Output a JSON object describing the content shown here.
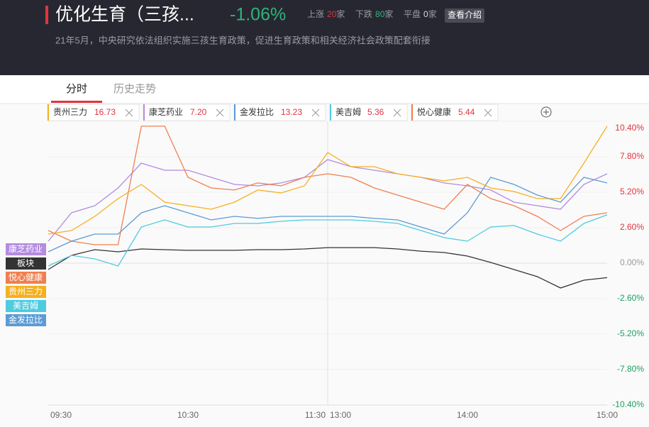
{
  "header": {
    "title": "优化生育（三孩...",
    "change": "-1.06%",
    "stats": [
      {
        "label": "上涨",
        "count": 20,
        "unit": "家"
      },
      {
        "label": "下跌",
        "count": 80,
        "unit": "家"
      },
      {
        "label": "平盘",
        "count": 0,
        "unit": "家"
      }
    ],
    "button": "查看介绍",
    "description": "21年5月，中央研究依法组织实施三孩生育政策，促进生育政策和相关经济社会政策配套衔接"
  },
  "tabs": [
    "分时",
    "历史走势"
  ],
  "stocks": [
    {
      "name": "贵州三力",
      "price": "16.73",
      "color": "#f5b021"
    },
    {
      "name": "康芝药业",
      "price": "7.20",
      "color": "#b38be0"
    },
    {
      "name": "金发拉比",
      "price": "13.23",
      "color": "#5b9bd5"
    },
    {
      "name": "美吉姆",
      "price": "5.36",
      "color": "#4fcbe0"
    },
    {
      "name": "悦心健康",
      "price": "5.44",
      "color": "#f07f4f"
    }
  ],
  "chart_data": {
    "type": "line",
    "x": [
      "09:30",
      "09:40",
      "09:50",
      "10:00",
      "10:10",
      "10:20",
      "10:30",
      "10:40",
      "10:50",
      "11:00",
      "11:10",
      "11:20",
      "11:30",
      "13:10",
      "13:20",
      "13:30",
      "13:40",
      "13:50",
      "14:00",
      "14:10",
      "14:20",
      "14:30",
      "14:40",
      "14:50",
      "15:00"
    ],
    "xticks": [
      "09:30",
      "10:30",
      "11:30",
      "13:00",
      "14:00",
      "15:00"
    ],
    "ylim": [
      -10.4,
      10.4
    ],
    "yticks": [
      {
        "value": 10.4,
        "label": "10.40%"
      },
      {
        "value": 7.8,
        "label": "7.80%"
      },
      {
        "value": 5.2,
        "label": "5.20%"
      },
      {
        "value": 2.6,
        "label": "2.60%"
      },
      {
        "value": 0,
        "label": "0.00%"
      },
      {
        "value": -2.6,
        "label": "-2.60%"
      },
      {
        "value": -5.2,
        "label": "-5.20%"
      },
      {
        "value": -7.8,
        "label": "-7.80%"
      },
      {
        "value": -10.4,
        "label": "-10.40%"
      }
    ],
    "series": [
      {
        "name": "康芝药业",
        "color": "#b38be0",
        "values": [
          1.61,
          3.69,
          4.21,
          5.51,
          7.33,
          6.81,
          6.81,
          6.29,
          5.77,
          5.67,
          5.88,
          6.29,
          7.59,
          7.07,
          6.81,
          6.55,
          6.29,
          5.88,
          5.67,
          5.36,
          4.47,
          4.21,
          3.95,
          5.77,
          6.55
        ]
      },
      {
        "name": "板块",
        "color": "#333333",
        "values": [
          -0.47,
          0.57,
          0.99,
          0.83,
          1.04,
          0.99,
          0.94,
          0.94,
          0.94,
          0.99,
          0.99,
          1.04,
          1.14,
          1.14,
          1.14,
          1.04,
          0.88,
          0.78,
          0.52,
          0.05,
          -0.47,
          -0.99,
          -1.82,
          -1.25,
          -1.06
        ]
      },
      {
        "name": "悦心健康",
        "color": "#f07f4f",
        "values": [
          2.39,
          1.61,
          1.35,
          1.35,
          10.04,
          10.04,
          6.29,
          5.51,
          5.36,
          5.88,
          5.67,
          6.29,
          6.55,
          6.29,
          5.51,
          4.99,
          4.47,
          3.95,
          5.77,
          4.73,
          4.21,
          3.43,
          2.39,
          3.43,
          3.69
        ]
      },
      {
        "name": "贵州三力",
        "color": "#f5b021",
        "values": [
          2.13,
          2.39,
          3.43,
          4.73,
          5.77,
          4.47,
          4.21,
          3.95,
          4.47,
          5.36,
          5.15,
          5.67,
          8.11,
          7.07,
          7.07,
          6.55,
          6.29,
          6.03,
          6.29,
          5.51,
          5.25,
          4.73,
          4.73,
          7.33,
          10.04
        ]
      },
      {
        "name": "美吉姆",
        "color": "#4fcbe0",
        "values": [
          -0.21,
          0.57,
          0.31,
          -0.21,
          2.65,
          3.17,
          2.65,
          2.65,
          2.91,
          2.91,
          3.07,
          3.17,
          3.17,
          3.17,
          3.07,
          2.91,
          2.39,
          1.87,
          1.61,
          2.65,
          2.76,
          2.13,
          1.61,
          2.91,
          3.54
        ]
      },
      {
        "name": "金发拉比",
        "color": "#5b9bd5",
        "values": [
          0.83,
          1.61,
          2.13,
          2.13,
          3.69,
          4.21,
          3.69,
          3.17,
          3.43,
          3.28,
          3.43,
          3.43,
          3.43,
          3.43,
          3.28,
          3.17,
          2.65,
          2.13,
          3.69,
          6.29,
          5.77,
          4.99,
          4.47,
          6.29,
          5.88
        ]
      }
    ]
  }
}
